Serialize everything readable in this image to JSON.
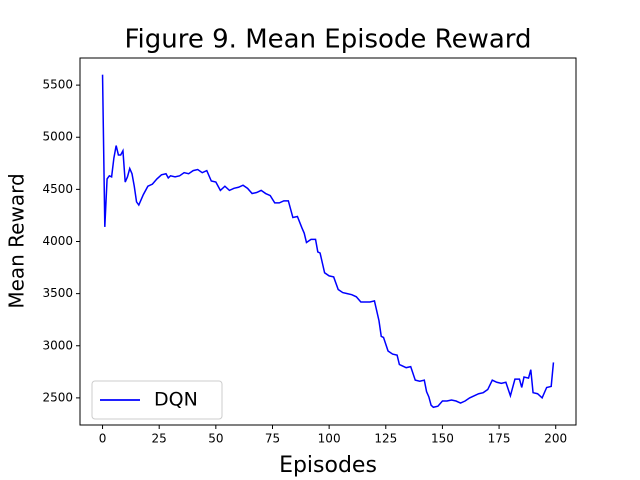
{
  "chart_data": {
    "type": "line",
    "title": "Figure 9. Mean Episode Reward",
    "x_label": "Episodes",
    "y_label": "Mean Reward",
    "x": [
      0,
      1,
      2,
      3,
      4,
      5,
      6,
      7,
      8,
      9,
      10,
      11,
      12,
      13,
      14,
      15,
      16,
      17,
      18,
      20,
      22,
      24,
      26,
      28,
      29,
      30,
      32,
      34,
      36,
      38,
      40,
      42,
      44,
      46,
      48,
      50,
      52,
      54,
      56,
      58,
      60,
      62,
      64,
      66,
      68,
      70,
      72,
      74,
      76,
      78,
      80,
      82,
      84,
      86,
      88,
      89,
      90,
      92,
      94,
      95,
      96,
      98,
      100,
      102,
      104,
      106,
      108,
      110,
      112,
      114,
      116,
      118,
      120,
      122,
      123,
      124,
      126,
      128,
      130,
      131,
      132,
      134,
      136,
      138,
      140,
      142,
      143,
      144,
      145,
      146,
      148,
      150,
      152,
      154,
      156,
      158,
      160,
      162,
      164,
      166,
      168,
      170,
      172,
      174,
      176,
      178,
      180,
      182,
      184,
      185,
      186,
      188,
      189,
      190,
      192,
      194,
      196,
      198,
      199
    ],
    "series": [
      {
        "name": "DQN",
        "color": "#0000ff",
        "values": [
          5600,
          4140,
          4600,
          4630,
          4620,
          4800,
          4920,
          4830,
          4830,
          4870,
          4570,
          4620,
          4700,
          4650,
          4530,
          4380,
          4350,
          4400,
          4450,
          4530,
          4550,
          4600,
          4640,
          4650,
          4610,
          4630,
          4620,
          4630,
          4660,
          4650,
          4680,
          4690,
          4660,
          4680,
          4580,
          4570,
          4490,
          4530,
          4490,
          4510,
          4520,
          4540,
          4510,
          4460,
          4470,
          4490,
          4460,
          4440,
          4370,
          4370,
          4390,
          4390,
          4230,
          4240,
          4130,
          4080,
          3990,
          4020,
          4020,
          3900,
          3890,
          3700,
          3670,
          3660,
          3540,
          3510,
          3500,
          3490,
          3470,
          3420,
          3420,
          3420,
          3430,
          3240,
          3090,
          3080,
          2950,
          2920,
          2910,
          2820,
          2810,
          2790,
          2800,
          2670,
          2660,
          2670,
          2560,
          2510,
          2430,
          2410,
          2420,
          2470,
          2470,
          2480,
          2470,
          2450,
          2470,
          2500,
          2520,
          2540,
          2550,
          2580,
          2670,
          2650,
          2640,
          2650,
          2520,
          2680,
          2680,
          2600,
          2700,
          2690,
          2770,
          2550,
          2540,
          2500,
          2600,
          2610,
          2840
        ]
      }
    ],
    "xlim": [
      -9.95,
      208.95
    ],
    "ylim": [
      2240,
      5760
    ],
    "xticks": [
      0,
      25,
      50,
      75,
      100,
      125,
      150,
      175,
      200
    ],
    "yticks": [
      2500,
      3000,
      3500,
      4000,
      4500,
      5000,
      5500
    ],
    "legend": "lower left"
  }
}
